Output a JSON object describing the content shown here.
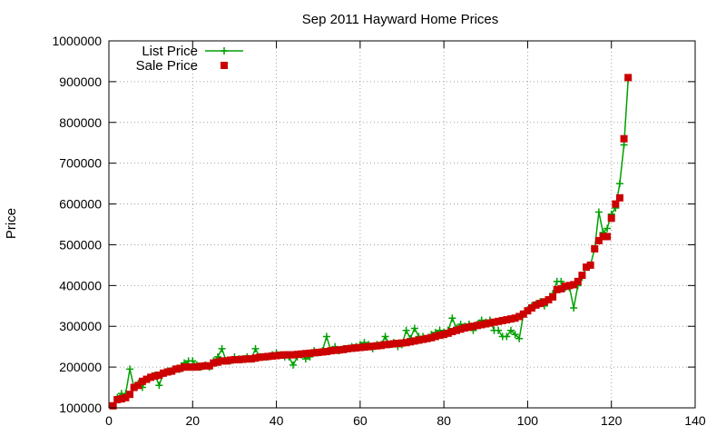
{
  "chart_data": {
    "type": "line",
    "title": "Sep 2011 Hayward Home Prices",
    "xlabel": "",
    "ylabel": "Price",
    "xlim": [
      0,
      140
    ],
    "ylim": [
      100000,
      1000000
    ],
    "x_ticks": [
      0,
      20,
      40,
      60,
      80,
      100,
      120,
      140
    ],
    "y_ticks": [
      100000,
      200000,
      300000,
      400000,
      500000,
      600000,
      700000,
      800000,
      900000,
      1000000
    ],
    "grid": true,
    "legend_position": "top-left",
    "x": [
      1,
      2,
      3,
      4,
      5,
      6,
      7,
      8,
      9,
      10,
      11,
      12,
      13,
      14,
      15,
      16,
      17,
      18,
      19,
      20,
      21,
      22,
      23,
      24,
      25,
      26,
      27,
      28,
      29,
      30,
      31,
      32,
      33,
      34,
      35,
      36,
      37,
      38,
      39,
      40,
      41,
      42,
      43,
      44,
      45,
      46,
      47,
      48,
      49,
      50,
      51,
      52,
      53,
      54,
      55,
      56,
      57,
      58,
      59,
      60,
      61,
      62,
      63,
      64,
      65,
      66,
      67,
      68,
      69,
      70,
      71,
      72,
      73,
      74,
      75,
      76,
      77,
      78,
      79,
      80,
      81,
      82,
      83,
      84,
      85,
      86,
      87,
      88,
      89,
      90,
      91,
      92,
      93,
      94,
      95,
      96,
      97,
      98,
      99,
      100,
      101,
      102,
      103,
      104,
      105,
      106,
      107,
      108,
      109,
      110,
      111,
      112,
      113,
      114,
      115,
      116,
      117,
      118,
      119,
      120,
      121,
      122,
      123,
      124
    ],
    "series": [
      {
        "name": "List Price",
        "color": "#00a000",
        "marker": "plus",
        "values": [
          105000,
          125000,
          135000,
          135000,
          195000,
          150000,
          160000,
          150000,
          170000,
          175000,
          180000,
          155000,
          185000,
          190000,
          190000,
          195000,
          195000,
          210000,
          215000,
          215000,
          205000,
          200000,
          205000,
          200000,
          215000,
          225000,
          245000,
          215000,
          215000,
          225000,
          220000,
          220000,
          225000,
          220000,
          245000,
          225000,
          225000,
          225000,
          230000,
          235000,
          230000,
          225000,
          225000,
          205000,
          225000,
          230000,
          220000,
          225000,
          240000,
          235000,
          240000,
          275000,
          240000,
          250000,
          240000,
          245000,
          245000,
          250000,
          250000,
          255000,
          260000,
          255000,
          245000,
          255000,
          255000,
          275000,
          255000,
          260000,
          250000,
          255000,
          290000,
          270000,
          295000,
          275000,
          275000,
          270000,
          280000,
          285000,
          290000,
          285000,
          290000,
          320000,
          295000,
          305000,
          300000,
          305000,
          290000,
          305000,
          315000,
          310000,
          315000,
          290000,
          290000,
          275000,
          275000,
          290000,
          280000,
          270000,
          330000,
          340000,
          350000,
          355000,
          360000,
          350000,
          365000,
          380000,
          410000,
          410000,
          395000,
          395000,
          345000,
          400000,
          420000,
          445000,
          450000,
          490000,
          580000,
          530000,
          540000,
          575000,
          590000,
          650000,
          745000,
          905000
        ]
      },
      {
        "name": "Sale Price",
        "color": "#cc0000",
        "marker": "square",
        "values": [
          105000,
          120000,
          122000,
          125000,
          133000,
          150000,
          155000,
          165000,
          170000,
          175000,
          178000,
          180000,
          185000,
          188000,
          190000,
          195000,
          197000,
          200000,
          200000,
          200000,
          200000,
          202000,
          203000,
          203000,
          210000,
          212000,
          215000,
          215000,
          217000,
          218000,
          218000,
          219000,
          220000,
          220000,
          222000,
          224000,
          225000,
          226000,
          227000,
          228000,
          229000,
          230000,
          230000,
          230000,
          231000,
          232000,
          233000,
          234000,
          235000,
          236000,
          237000,
          238000,
          240000,
          241000,
          242000,
          243000,
          245000,
          246000,
          247000,
          248000,
          249000,
          250000,
          251000,
          252000,
          253000,
          255000,
          256000,
          257000,
          258000,
          259000,
          260000,
          262000,
          264000,
          266000,
          268000,
          270000,
          272000,
          275000,
          278000,
          280000,
          283000,
          287000,
          290000,
          293000,
          296000,
          298000,
          300000,
          302000,
          304000,
          306000,
          308000,
          310000,
          312000,
          314000,
          316000,
          318000,
          320000,
          324000,
          330000,
          338000,
          345000,
          352000,
          356000,
          360000,
          365000,
          372000,
          390000,
          392000,
          398000,
          400000,
          402000,
          410000,
          425000,
          445000,
          450000,
          490000,
          510000,
          520000,
          520000,
          565000,
          600000,
          615000,
          760000,
          910000
        ]
      }
    ]
  }
}
